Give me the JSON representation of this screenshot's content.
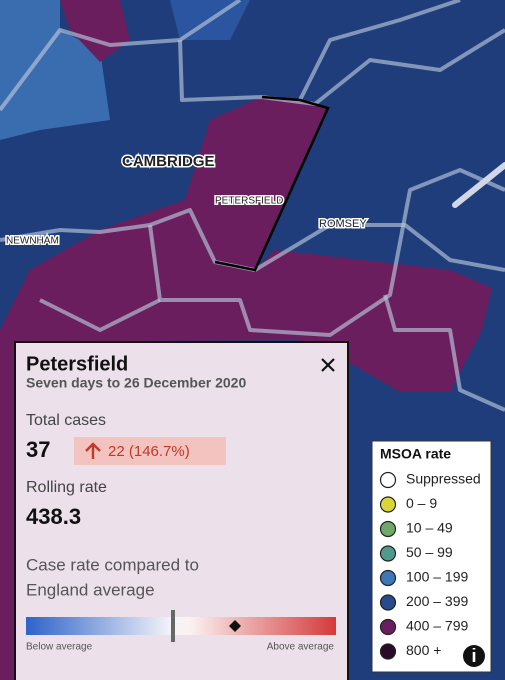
{
  "map": {
    "labels": [
      "CAMBRIDGE",
      "PETERSFIELD",
      "ROMSEY",
      "NEWNHAM"
    ]
  },
  "popup": {
    "title": "Petersfield",
    "subtitle": "Seven days to 26 December 2020",
    "total_cases_label": "Total cases",
    "total_cases": "37",
    "change": "22 (146.7%)",
    "rolling_rate_label": "Rolling rate",
    "rolling_rate": "438.3",
    "comparison_label": [
      "Case rate compared to",
      "England average"
    ],
    "below": "Below average",
    "above": "Above average"
  },
  "legend": {
    "title": "MSOA rate",
    "items": [
      {
        "label": "Suppressed",
        "color": "#ffffff"
      },
      {
        "label": "0 – 9",
        "color": "#d9d63a"
      },
      {
        "label": "10 – 49",
        "color": "#6fa86a"
      },
      {
        "label": "50 – 99",
        "color": "#4f9a8c"
      },
      {
        "label": "100 – 199",
        "color": "#3f76b8"
      },
      {
        "label": "200 – 399",
        "color": "#284a8e"
      },
      {
        "label": "400 – 799",
        "color": "#6a1e5e"
      },
      {
        "label": "800 +",
        "color": "#2b0b28"
      }
    ]
  }
}
